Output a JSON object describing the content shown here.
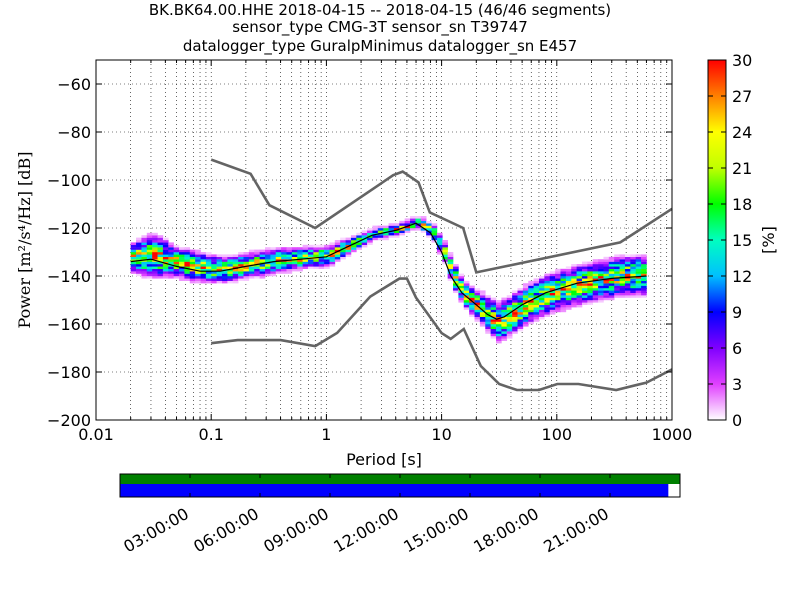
{
  "title": {
    "line1": "BK.BK64.00.HHE   2018-04-15 -- 2018-04-15  (46/46 segments)",
    "line2": "sensor_type CMG-3T sensor_sn T39747",
    "line3": "datalogger_type GuralpMinimus datalogger_sn E457"
  },
  "chart_data": [
    {
      "type": "heatmap",
      "xlabel": "Period [s]",
      "ylabel": "Power [m²/s⁴/Hz] [dB]",
      "x_scale": "log",
      "xlim": [
        0.01,
        1000
      ],
      "ylim": [
        -200,
        -50
      ],
      "x_tick_labels": [
        "0.01",
        "0.1",
        "1",
        "10",
        "100",
        "1000"
      ],
      "x_ticks": [
        0.01,
        0.1,
        1,
        10,
        100,
        1000
      ],
      "y_ticks": [
        -200,
        -180,
        -160,
        -140,
        -120,
        -100,
        -80,
        -60
      ],
      "y_tick_labels": [
        "−200",
        "−180",
        "−160",
        "−140",
        "−120",
        "−100",
        "−80",
        "−60"
      ],
      "grid": true,
      "psd_band": {
        "period": [
          0.02,
          0.03,
          0.05,
          0.08,
          0.12,
          0.2,
          0.35,
          0.6,
          1.0,
          1.5,
          2.5,
          4,
          6,
          8,
          10,
          12,
          15,
          20,
          25,
          30,
          35,
          50,
          80,
          150,
          300,
          600
        ],
        "mean": [
          -133,
          -132,
          -135,
          -137,
          -138,
          -136,
          -134,
          -133,
          -132,
          -128,
          -123,
          -121,
          -118,
          -122,
          -130,
          -140,
          -148,
          -153,
          -157,
          -160,
          -158,
          -153,
          -148,
          -144,
          -141,
          -140
        ],
        "spread": [
          6,
          9,
          6,
          6,
          5,
          5,
          5,
          4,
          4,
          3,
          2,
          2,
          2,
          3,
          4,
          5,
          5,
          6,
          7,
          8,
          8,
          8,
          8,
          8,
          8,
          8
        ]
      },
      "median_line": {
        "period": [
          0.02,
          0.03,
          0.05,
          0.08,
          0.12,
          0.2,
          0.35,
          0.6,
          1.0,
          1.5,
          2.5,
          4,
          6,
          8,
          10,
          12,
          15,
          20,
          25,
          30,
          35,
          50,
          80,
          150,
          300,
          600
        ],
        "power": [
          -134,
          -133,
          -136,
          -138,
          -138,
          -136,
          -134,
          -133,
          -132,
          -128,
          -123,
          -121,
          -118,
          -122,
          -130,
          -140,
          -147,
          -152,
          -156,
          -158,
          -157,
          -152,
          -147,
          -143,
          -141,
          -140
        ]
      },
      "nhnm": {
        "period": [
          0.1,
          0.22,
          0.32,
          0.8,
          3.8,
          4.6,
          6.3,
          7.9,
          15.4,
          20,
          354.8,
          1000
        ],
        "power": [
          -91.5,
          -97.4,
          -110.5,
          -120,
          -98,
          -96.5,
          -101,
          -113.5,
          -120,
          -138.5,
          -126,
          -112
        ]
      },
      "nlnm": {
        "period": [
          0.1,
          0.17,
          0.4,
          0.8,
          1.24,
          2.4,
          4.3,
          5.0,
          6.0,
          10.0,
          12.0,
          15.6,
          21.9,
          31.6,
          45,
          70,
          101,
          154,
          328,
          600,
          1000
        ],
        "power": [
          -168,
          -166.7,
          -166.7,
          -169.2,
          -163.7,
          -148.6,
          -141.1,
          -141.1,
          -149,
          -163.8,
          -166.2,
          -162.1,
          -177.5,
          -185,
          -187.5,
          -187.5,
          -185,
          -185,
          -187.5,
          -184.4,
          -178.9
        ]
      },
      "colorbar": {
        "label": "[%]",
        "min": 0,
        "max": 30,
        "ticks": [
          0,
          3,
          6,
          9,
          12,
          15,
          18,
          21,
          24,
          27,
          30
        ],
        "colors": [
          "#ffffff",
          "#e040ff",
          "#8000ff",
          "#0000ff",
          "#00c0ff",
          "#00ffc0",
          "#00ff00",
          "#c0ff00",
          "#ffff00",
          "#ff8000",
          "#ff0000"
        ]
      },
      "line_color": "#646464",
      "median_color": "#000000"
    },
    {
      "type": "bar",
      "description_role": "data coverage timeline",
      "x_tick_labels": [
        "03:00:00",
        "06:00:00",
        "09:00:00",
        "12:00:00",
        "15:00:00",
        "18:00:00",
        "21:00:00"
      ],
      "x_ticks_hours": [
        3,
        6,
        9,
        12,
        15,
        18,
        21
      ],
      "xlim_hours": [
        0,
        24
      ],
      "coverage_green_hours": [
        0,
        24
      ],
      "coverage_blue_hours": [
        0,
        23.5
      ],
      "colors": {
        "green": "#008000",
        "blue": "#0000ff"
      }
    }
  ]
}
